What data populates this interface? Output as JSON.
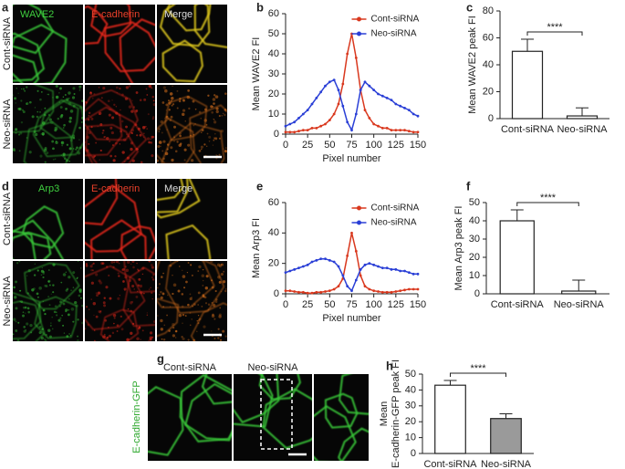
{
  "panel_labels": [
    "a",
    "b",
    "c",
    "d",
    "e",
    "f",
    "g",
    "h"
  ],
  "image_panels": [
    {
      "columns": [
        "WAVE2",
        "E-cadherin",
        "Merge"
      ],
      "rows": [
        "Cont-siRNA",
        "Neo-siRNA"
      ]
    },
    {
      "columns": [
        "Arp3",
        "E-cadherin",
        "Merge"
      ],
      "rows": [
        "Cont-siRNA",
        "Neo-siRNA"
      ]
    },
    {
      "columns": [
        "Cont-siRNA",
        "Neo-siRNA"
      ],
      "rows": [
        "E-cadherin-GFP"
      ]
    }
  ],
  "chart_data": [
    {
      "type": "line",
      "xlabel": "Pixel number",
      "ylabel": "Mean WAVE2 FI",
      "x": [
        0,
        5,
        10,
        15,
        20,
        25,
        30,
        35,
        40,
        45,
        50,
        55,
        60,
        65,
        70,
        75,
        80,
        85,
        90,
        95,
        100,
        105,
        110,
        115,
        120,
        125,
        130,
        135,
        140,
        145,
        150
      ],
      "series": [
        {
          "name": "Cont-siRNA",
          "color": "#d9381e",
          "values": [
            1,
            1,
            1,
            1.5,
            2,
            2,
            3,
            3,
            4,
            5,
            7,
            10,
            15,
            25,
            40,
            50,
            38,
            22,
            12,
            8,
            5,
            4,
            3,
            3,
            2,
            2,
            2,
            2,
            1.5,
            1,
            1
          ]
        },
        {
          "name": "Neo-siRNA",
          "color": "#2a3fd6",
          "values": [
            4,
            5,
            6,
            8,
            10,
            12,
            15,
            18,
            21,
            24,
            26,
            27,
            22,
            14,
            6,
            2,
            10,
            22,
            26,
            24,
            22,
            20,
            19,
            18,
            17,
            15,
            14,
            13,
            12,
            10,
            9
          ]
        }
      ],
      "xlim": [
        0,
        150
      ],
      "xticks": [
        0,
        25,
        50,
        75,
        100,
        125,
        150
      ],
      "ylim": [
        0,
        60
      ],
      "yticks": [
        0,
        10,
        20,
        30,
        40,
        50,
        60
      ],
      "legend": "upper right"
    },
    {
      "type": "bar",
      "ylabel": "Mean WAVE2 peak FI",
      "categories": [
        "Cont-siRNA",
        "Neo-siRNA"
      ],
      "values": [
        50,
        2
      ],
      "errors": [
        9,
        6
      ],
      "colors": [
        "#ffffff",
        "#ffffff"
      ],
      "annotation": "****",
      "ylim": [
        0,
        80
      ],
      "yticks": [
        0,
        20,
        40,
        60,
        80
      ]
    },
    {
      "type": "line",
      "xlabel": "Pixel number",
      "ylabel": "Mean Arp3 FI",
      "x": [
        0,
        5,
        10,
        15,
        20,
        25,
        30,
        35,
        40,
        45,
        50,
        55,
        60,
        65,
        70,
        75,
        80,
        85,
        90,
        95,
        100,
        105,
        110,
        115,
        120,
        125,
        130,
        135,
        140,
        145,
        150
      ],
      "series": [
        {
          "name": "Cont-siRNA",
          "color": "#d9381e",
          "values": [
            2,
            2,
            1.5,
            1,
            1,
            0.5,
            0.5,
            1,
            1,
            1.5,
            2,
            3,
            5,
            10,
            25,
            40,
            28,
            12,
            5,
            3,
            2,
            1.5,
            1,
            1,
            1,
            1.5,
            2,
            2.5,
            3,
            3,
            3
          ]
        },
        {
          "name": "Neo-siRNA",
          "color": "#2a3fd6",
          "values": [
            14,
            15,
            16,
            17,
            18,
            19,
            21,
            22,
            23,
            23,
            22,
            21,
            18,
            12,
            5,
            2,
            9,
            16,
            19,
            20,
            19,
            18,
            17,
            17,
            16,
            16,
            15,
            15,
            14,
            13,
            13
          ]
        }
      ],
      "xlim": [
        0,
        150
      ],
      "xticks": [
        0,
        25,
        50,
        75,
        100,
        125,
        150
      ],
      "ylim": [
        0,
        60
      ],
      "yticks": [
        0,
        20,
        40,
        60
      ],
      "legend": "upper right"
    },
    {
      "type": "bar",
      "ylabel": "Mean Arp3 peak FI",
      "categories": [
        "Cont-siRNA",
        "Neo-siRNA"
      ],
      "values": [
        40,
        1.5
      ],
      "errors": [
        6,
        6
      ],
      "colors": [
        "#ffffff",
        "#ffffff"
      ],
      "annotation": "****",
      "ylim": [
        0,
        50
      ],
      "yticks": [
        0,
        10,
        20,
        30,
        40,
        50
      ]
    },
    {
      "type": "bar",
      "ylabel": [
        "Mean",
        "E-cadherin-GFP peak FI"
      ],
      "categories": [
        "Cont-siRNA",
        "Neo-siRNA"
      ],
      "values": [
        43,
        22
      ],
      "errors": [
        3,
        3
      ],
      "colors": [
        "#ffffff",
        "#9a9a9a"
      ],
      "annotation": "****",
      "ylim": [
        0,
        50
      ],
      "yticks": [
        0,
        10,
        20,
        30,
        40,
        50
      ]
    }
  ]
}
